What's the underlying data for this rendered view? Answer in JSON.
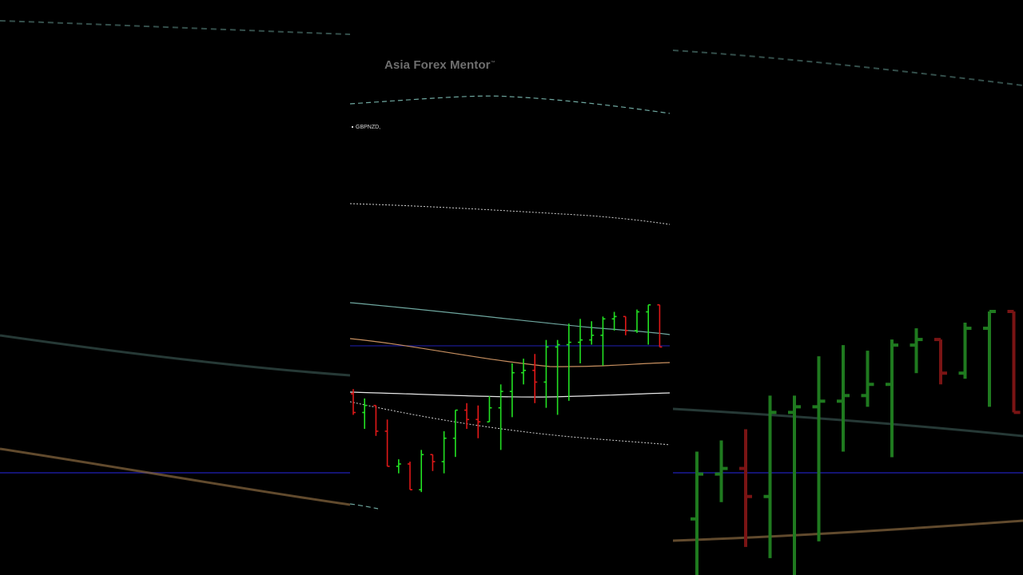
{
  "watermark": {
    "brand": "Asia Forex Mentor",
    "tm": "™"
  },
  "symbol": "GBPNZD,",
  "colors": {
    "background": "#000000",
    "bull": "#22e022",
    "bear": "#e01818",
    "bull_dim": "#1f7a1f",
    "bear_dim": "#7a1414",
    "band_teal": "#6fa8a0",
    "band_white": "#e8e8e8",
    "ma_orange": "#c89060",
    "hline_blue": "#1a1a90"
  },
  "chart_data": {
    "type": "ohlc",
    "series": [
      {
        "values": [
          [
            0.64,
            0.55,
            0.66,
            0.56
          ],
          [
            0.56,
            0.62,
            0.49,
            0.59
          ],
          [
            0.59,
            0.57,
            0.46,
            0.48
          ],
          [
            0.48,
            0.33,
            0.53,
            0.33
          ],
          [
            0.33,
            0.36,
            0.3,
            0.34
          ],
          [
            0.34,
            0.33,
            0.35,
            0.23
          ],
          [
            0.23,
            0.4,
            0.22,
            0.38
          ],
          [
            0.38,
            0.32,
            0.31,
            0.35
          ],
          [
            0.35,
            0.48,
            0.3,
            0.45
          ],
          [
            0.45,
            0.55,
            0.37,
            0.57
          ],
          [
            0.57,
            0.6,
            0.49,
            0.53
          ],
          [
            0.53,
            0.59,
            0.45,
            0.52
          ],
          [
            0.52,
            0.63,
            0.53,
            0.58
          ],
          [
            0.58,
            0.68,
            0.4,
            0.65
          ],
          [
            0.65,
            0.77,
            0.54,
            0.73
          ],
          [
            0.73,
            0.79,
            0.68,
            0.74
          ],
          [
            0.74,
            0.81,
            0.6,
            0.69
          ],
          [
            0.69,
            0.87,
            0.58,
            0.84
          ],
          [
            0.84,
            0.87,
            0.55,
            0.85
          ],
          [
            0.85,
            0.94,
            0.61,
            0.86
          ],
          [
            0.86,
            0.96,
            0.77,
            0.87
          ],
          [
            0.87,
            0.95,
            0.85,
            0.89
          ],
          [
            0.89,
            0.97,
            0.76,
            0.96
          ],
          [
            0.96,
            0.99,
            0.91,
            0.97
          ],
          [
            0.97,
            0.96,
            0.89,
            0.91
          ],
          [
            0.91,
            1.0,
            0.9,
            0.99
          ],
          [
            0.99,
            1.01,
            0.85,
            1.02
          ],
          [
            1.02,
            0.95,
            0.84,
            0.84
          ]
        ]
      }
    ],
    "grid": false,
    "legend": "none"
  }
}
